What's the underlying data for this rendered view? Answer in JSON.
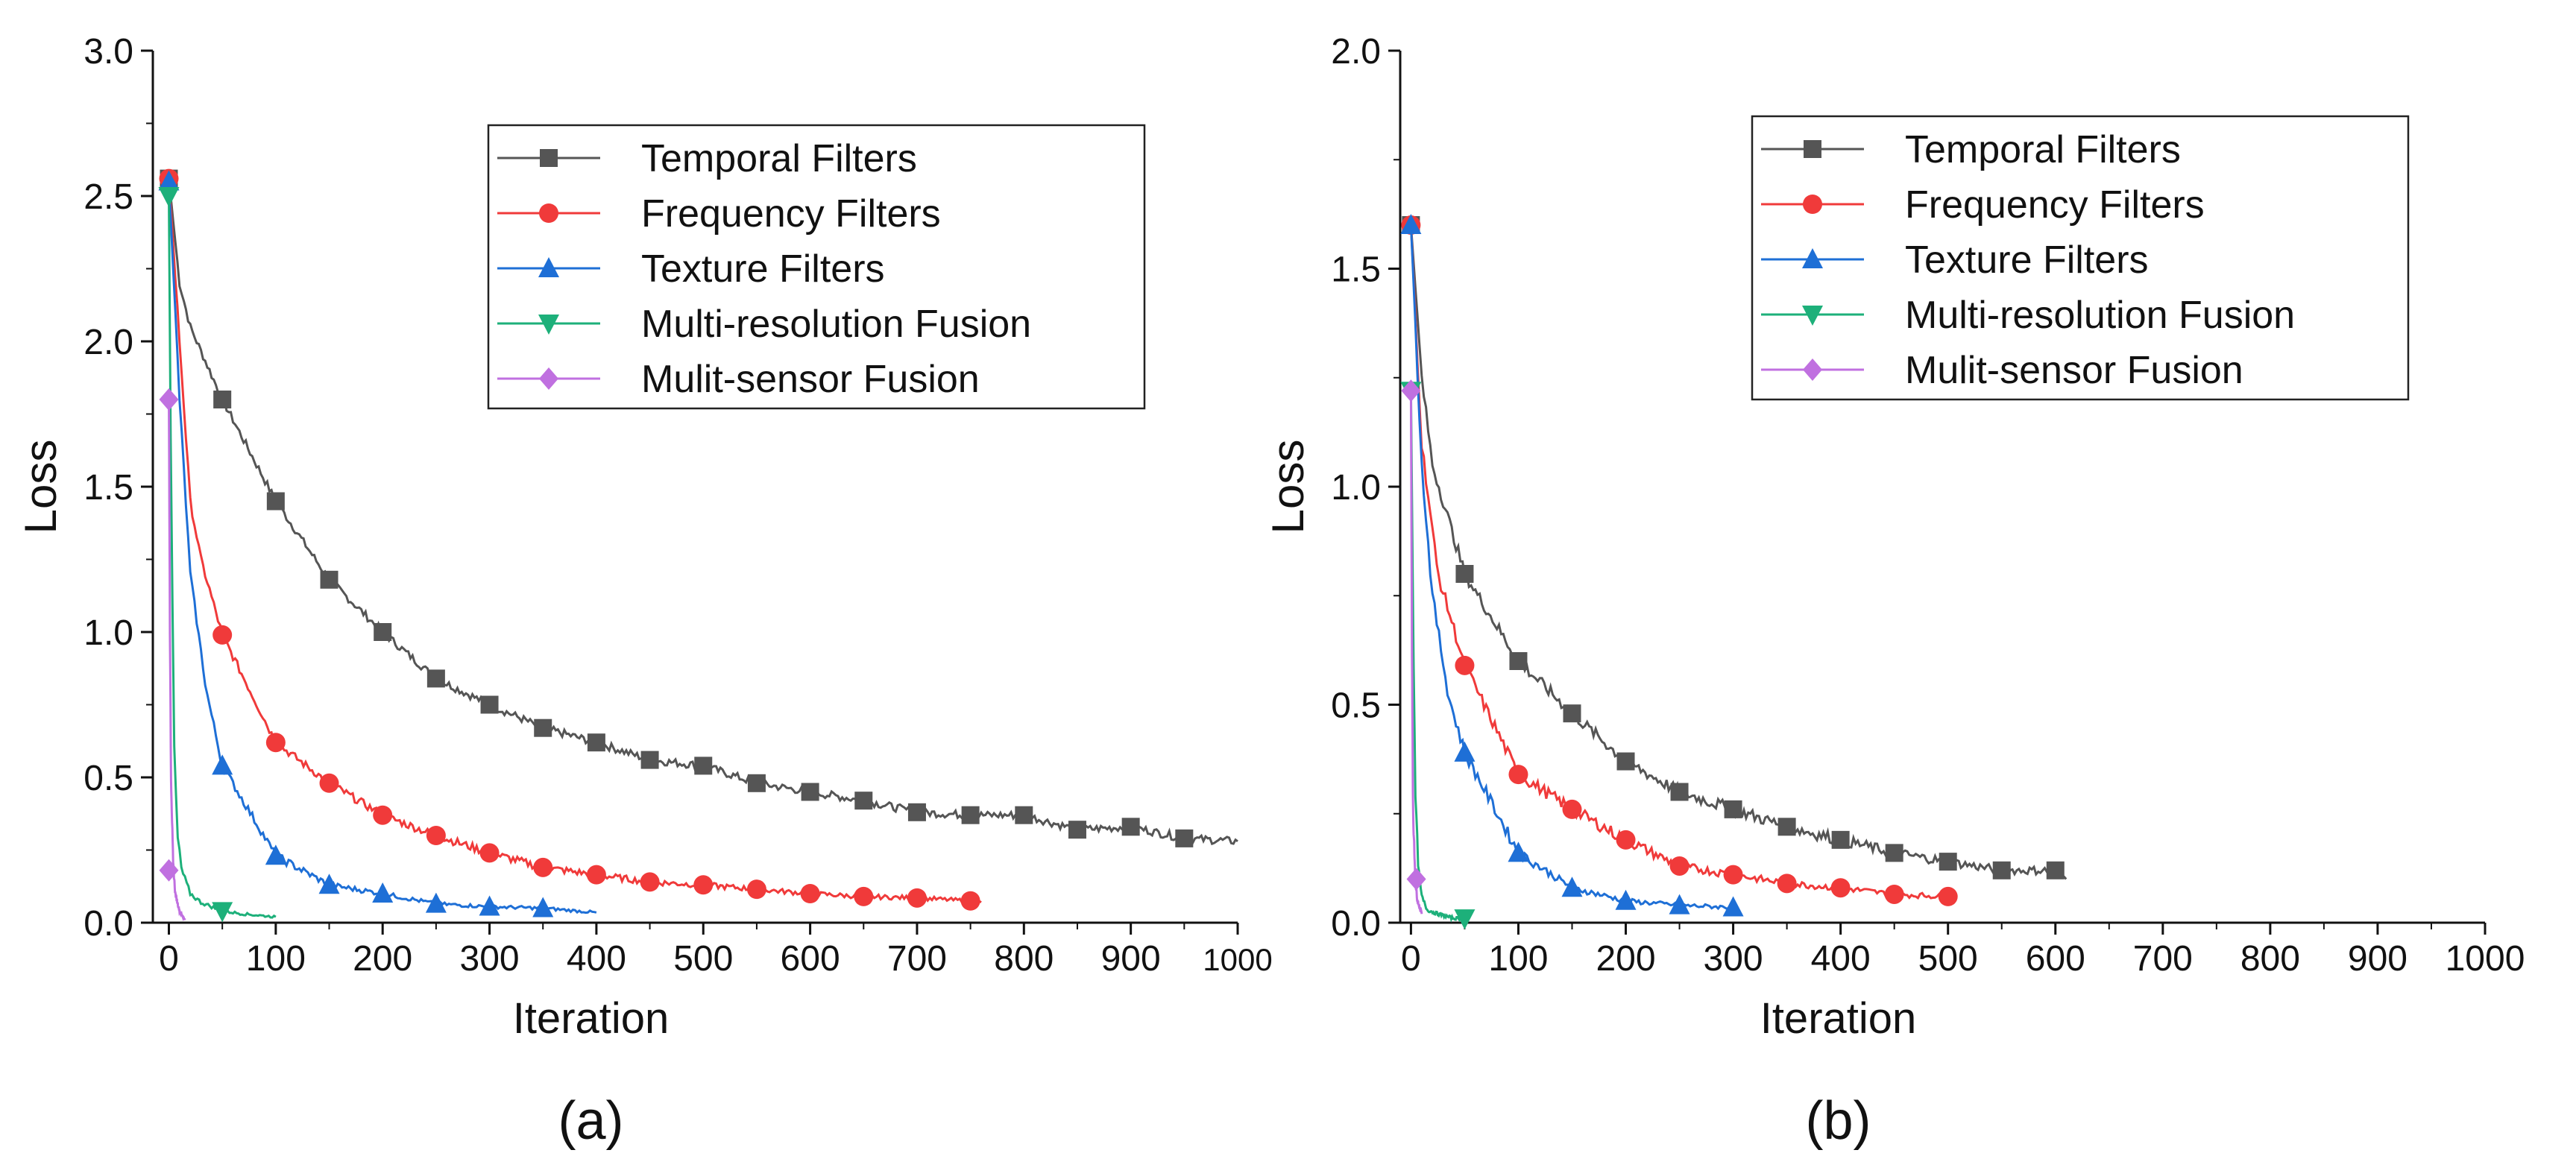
{
  "chart_data": [
    {
      "type": "line",
      "panel_label": "(a)",
      "xlabel": "Iteration",
      "ylabel": "Loss",
      "xlim": [
        -15,
        1000
      ],
      "ylim": [
        0,
        3.0
      ],
      "xticks": [
        0,
        100,
        200,
        300,
        400,
        500,
        600,
        700,
        800,
        900,
        1000
      ],
      "xtick_labels": [
        "0",
        "100",
        "200",
        "300",
        "400",
        "500",
        "600",
        "700",
        "800",
        "900",
        "1000"
      ],
      "yticks": [
        0,
        0.5,
        1.0,
        1.5,
        2.0,
        2.5,
        3.0
      ],
      "ytick_labels": [
        "0.0",
        "0.5",
        "1.0",
        "1.5",
        "2.0",
        "2.5",
        "3.0"
      ],
      "legend_position": "top-right",
      "series": [
        {
          "name": "Temporal Filters",
          "color": "#555555",
          "marker": "square",
          "x": [
            0,
            10,
            20,
            50,
            100,
            150,
            200,
            250,
            300,
            350,
            400,
            450,
            500,
            550,
            600,
            650,
            700,
            750,
            800,
            850,
            900,
            950,
            1000
          ],
          "y": [
            2.56,
            2.2,
            2.05,
            1.8,
            1.45,
            1.18,
            1.0,
            0.84,
            0.75,
            0.67,
            0.62,
            0.56,
            0.54,
            0.48,
            0.45,
            0.42,
            0.38,
            0.37,
            0.37,
            0.32,
            0.33,
            0.29,
            0.28
          ],
          "markers_x": [
            0,
            50,
            100,
            150,
            200,
            250,
            300,
            350,
            400,
            450,
            500,
            550,
            600,
            650,
            700,
            750,
            800,
            850,
            900,
            950
          ]
        },
        {
          "name": "Frequency Filters",
          "color": "#f03a3a",
          "marker": "circle",
          "x": [
            0,
            10,
            20,
            30,
            50,
            100,
            150,
            200,
            250,
            300,
            350,
            400,
            450,
            500,
            550,
            600,
            650,
            700,
            750,
            760
          ],
          "y": [
            2.56,
            2.0,
            1.45,
            1.25,
            0.99,
            0.62,
            0.48,
            0.37,
            0.3,
            0.24,
            0.19,
            0.165,
            0.14,
            0.13,
            0.115,
            0.1,
            0.09,
            0.085,
            0.075,
            0.07
          ],
          "markers_x": [
            0,
            50,
            100,
            150,
            200,
            250,
            300,
            350,
            400,
            450,
            500,
            550,
            600,
            650,
            700,
            750
          ]
        },
        {
          "name": "Texture Filters",
          "color": "#1e6fd6",
          "marker": "triangle-up",
          "x": [
            0,
            10,
            20,
            35,
            50,
            100,
            150,
            200,
            250,
            300,
            350,
            400
          ],
          "y": [
            2.55,
            1.8,
            1.2,
            0.8,
            0.54,
            0.23,
            0.13,
            0.1,
            0.065,
            0.055,
            0.05,
            0.035
          ],
          "markers_x": [
            0,
            50,
            100,
            150,
            200,
            250,
            300,
            350
          ]
        },
        {
          "name": "Multi-resolution Fusion",
          "color": "#1db07a",
          "marker": "triangle-down",
          "x": [
            0,
            2,
            5,
            8,
            12,
            20,
            30,
            50,
            70,
            100
          ],
          "y": [
            2.5,
            1.5,
            0.6,
            0.3,
            0.18,
            0.1,
            0.07,
            0.04,
            0.03,
            0.02
          ],
          "markers_x": [
            0,
            50
          ]
        },
        {
          "name": "Mulit-sensor Fusion",
          "color": "#c070e0",
          "marker": "diamond",
          "x": [
            0,
            1,
            2,
            4,
            6,
            10,
            15
          ],
          "y": [
            1.8,
            1.0,
            0.5,
            0.2,
            0.1,
            0.04,
            0.01
          ],
          "markers_x": [
            0
          ],
          "extra_markers": [
            [
              0,
              0.18
            ]
          ]
        }
      ]
    },
    {
      "type": "line",
      "panel_label": "(b)",
      "xlabel": "Iteration",
      "ylabel": "Loss",
      "xlim": [
        -10,
        1000
      ],
      "ylim": [
        0,
        2.0
      ],
      "xticks": [
        0,
        100,
        200,
        300,
        400,
        500,
        600,
        700,
        800,
        900,
        1000
      ],
      "xtick_labels": [
        "0",
        "100",
        "200",
        "300",
        "400",
        "500",
        "600",
        "700",
        "800",
        "900",
        "1000"
      ],
      "yticks": [
        0,
        0.5,
        1.0,
        1.5,
        2.0
      ],
      "ytick_labels": [
        "0.0",
        "0.5",
        "1.0",
        "1.5",
        "2.0"
      ],
      "legend_position": "top-right",
      "series": [
        {
          "name": "Temporal Filters",
          "color": "#555555",
          "marker": "square",
          "x": [
            0,
            10,
            20,
            50,
            100,
            150,
            200,
            250,
            300,
            350,
            400,
            450,
            500,
            550,
            600,
            610
          ],
          "y": [
            1.6,
            1.25,
            1.05,
            0.8,
            0.6,
            0.48,
            0.37,
            0.3,
            0.26,
            0.22,
            0.19,
            0.16,
            0.14,
            0.12,
            0.12,
            0.1
          ],
          "markers_x": [
            0,
            50,
            100,
            150,
            200,
            250,
            300,
            350,
            400,
            450,
            500,
            550,
            600
          ]
        },
        {
          "name": "Frequency Filters",
          "color": "#f03a3a",
          "marker": "circle",
          "x": [
            0,
            10,
            25,
            50,
            100,
            150,
            200,
            250,
            300,
            350,
            400,
            450,
            500
          ],
          "y": [
            1.6,
            1.1,
            0.8,
            0.59,
            0.34,
            0.26,
            0.19,
            0.13,
            0.11,
            0.09,
            0.08,
            0.065,
            0.06
          ],
          "markers_x": [
            0,
            50,
            100,
            150,
            200,
            250,
            300,
            350,
            400,
            450,
            500
          ]
        },
        {
          "name": "Texture Filters",
          "color": "#1e6fd6",
          "marker": "triangle-up",
          "x": [
            0,
            10,
            20,
            35,
            50,
            100,
            150,
            200,
            250,
            300
          ],
          "y": [
            1.6,
            1.05,
            0.75,
            0.52,
            0.39,
            0.16,
            0.08,
            0.05,
            0.04,
            0.035
          ],
          "markers_x": [
            0,
            50,
            100,
            150,
            200,
            250,
            300
          ]
        },
        {
          "name": "Multi-resolution Fusion",
          "color": "#1db07a",
          "marker": "triangle-down",
          "x": [
            0,
            2,
            4,
            7,
            10,
            15,
            25,
            40,
            50
          ],
          "y": [
            1.22,
            0.7,
            0.3,
            0.12,
            0.06,
            0.03,
            0.02,
            0.01,
            0.01
          ],
          "markers_x": [
            0,
            50
          ]
        },
        {
          "name": "Mulit-sensor Fusion",
          "color": "#c070e0",
          "marker": "diamond",
          "x": [
            0,
            1,
            2,
            4,
            6,
            10
          ],
          "y": [
            1.22,
            0.6,
            0.25,
            0.1,
            0.05,
            0.02
          ],
          "markers_x": [
            0
          ],
          "extra_markers": [
            [
              5,
              0.1
            ]
          ]
        }
      ]
    }
  ]
}
